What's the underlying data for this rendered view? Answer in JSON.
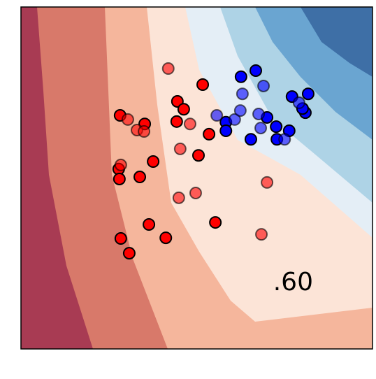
{
  "chart_data": {
    "type": "scatter",
    "annotation": ".60",
    "xlim": [
      0,
      100
    ],
    "ylim": [
      0,
      100
    ],
    "series": [
      {
        "color": "#ff0000",
        "opacity": 1,
        "x": [
          51.7,
          44.5,
          46.3,
          28.2,
          35.2,
          44.3,
          53.5,
          50.5,
          37.6,
          27.8,
          28.0,
          33.8,
          55.3,
          36.4,
          28.4,
          41.2,
          30.8
        ],
        "values": [
          77.3,
          72.4,
          70.1,
          68.3,
          65.8,
          66.5,
          62.8,
          56.6,
          54.8,
          52.6,
          49.7,
          50.3,
          37.0,
          36.4,
          32.3,
          32.5,
          28.0
        ]
      },
      {
        "color": "#ff0000",
        "opacity": 0.6,
        "x": [
          41.9,
          30.4,
          33.0,
          35.0,
          48.1,
          45.3,
          28.4,
          49.7,
          44.9,
          70.0,
          68.4
        ],
        "values": [
          82.0,
          67.1,
          64.0,
          63.6,
          65.8,
          58.5,
          53.8,
          45.6,
          44.2,
          48.7,
          33.5
        ]
      },
      {
        "color": "#0000ff",
        "opacity": 1,
        "x": [
          62.6,
          66.8,
          77.1,
          81.7,
          58.3,
          58.3,
          65.4,
          70.0,
          72.6,
          72.8,
          76.3,
          80.9,
          80.1
        ],
        "values": [
          79.6,
          81.4,
          73.8,
          74.6,
          66.3,
          63.8,
          61.3,
          67.7,
          65.0,
          61.3,
          63.8,
          69.1,
          70.3
        ]
      },
      {
        "color": "#0000ff",
        "opacity": 0.6,
        "x": [
          69.0,
          63.0,
          55.7,
          60.8,
          62.4,
          67.6,
          68.2,
          75.0,
          79.1
        ],
        "values": [
          76.9,
          74.6,
          68.3,
          67.1,
          69.7,
          68.7,
          64.6,
          61.3,
          72.0
        ]
      }
    ]
  }
}
